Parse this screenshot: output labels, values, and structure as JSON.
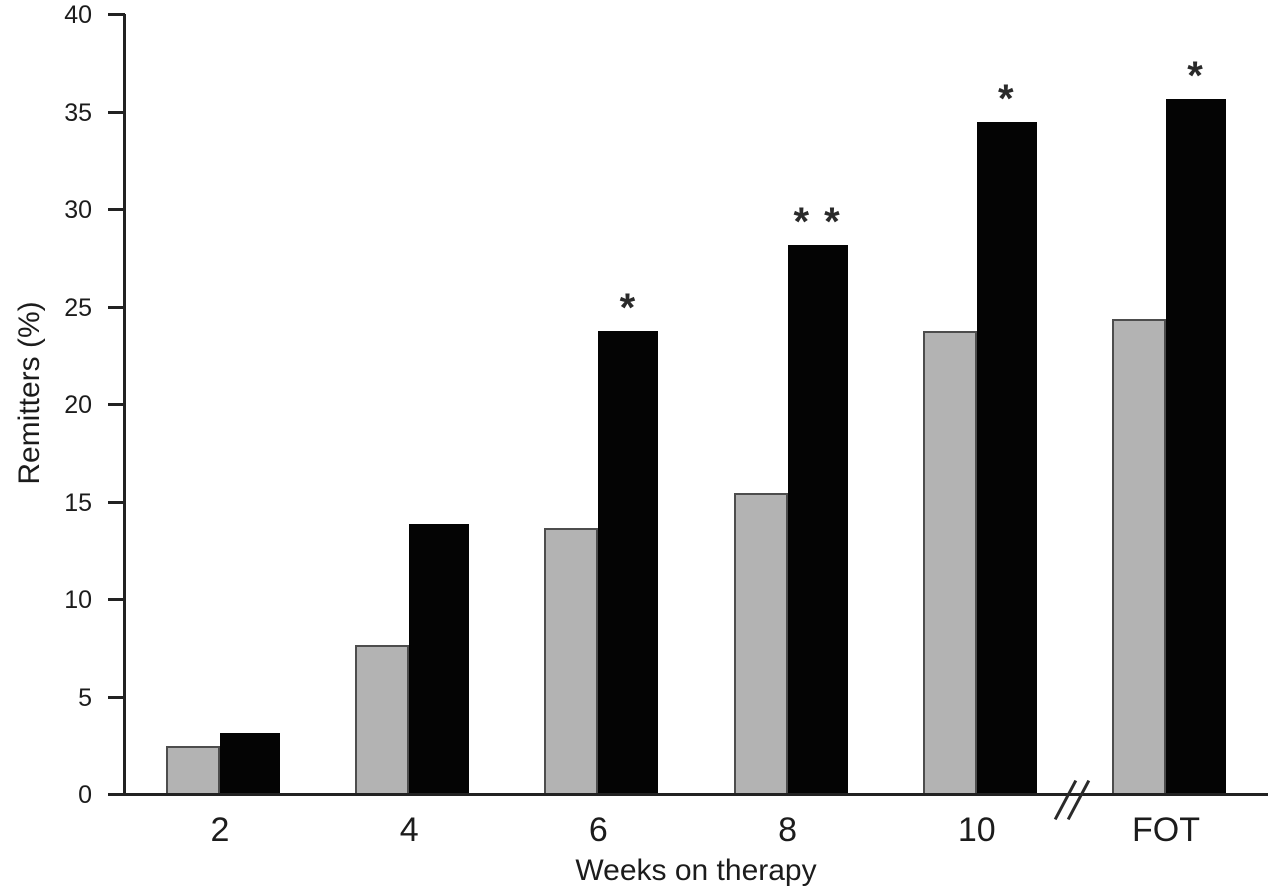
{
  "figure": {
    "kind": "published-journal-bar-figure",
    "background": "#ffffff"
  },
  "chart_data": {
    "type": "bar",
    "title": "",
    "xlabel": "Weeks on therapy",
    "ylabel": "Remitters (%)",
    "categories": [
      "2",
      "4",
      "6",
      "8",
      "10",
      "FOT"
    ],
    "series": [
      {
        "name": "gray-bars",
        "color": "#b3b3b3",
        "border_color": "#4d4d4d",
        "values": [
          2.5,
          7.7,
          13.7,
          15.5,
          23.8,
          24.4
        ]
      },
      {
        "name": "black-bars",
        "color": "#040404",
        "border_color": "#040404",
        "values": [
          3.2,
          13.9,
          23.8,
          28.2,
          34.5,
          35.7
        ]
      }
    ],
    "significance_markers": [
      "",
      "",
      "*",
      "* *",
      "*",
      "*"
    ],
    "ylim": [
      0,
      40
    ],
    "yticks": [
      0,
      5,
      10,
      15,
      20,
      25,
      30,
      35,
      40
    ],
    "axis_break_between": [
      "10",
      "FOT"
    ],
    "grid": false,
    "legend": "none"
  },
  "colors": {
    "axis": "#222222",
    "text": "#1c1c1c",
    "marker": "#2a2a2a"
  }
}
